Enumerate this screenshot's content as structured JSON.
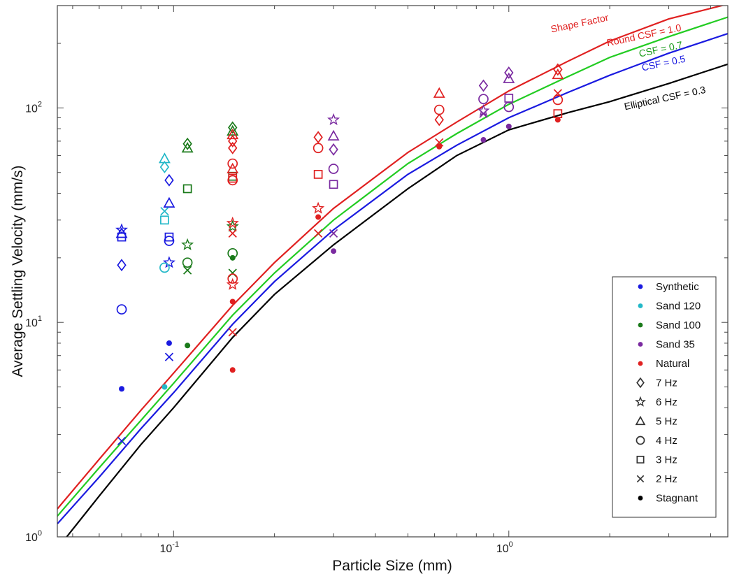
{
  "chart_data": {
    "type": "scatter",
    "xlabel": "Particle Size (mm)",
    "ylabel": "Average Settling Velocity (mm/s)",
    "xscale": "log",
    "yscale": "log",
    "xlim": [
      0.045,
      4.5
    ],
    "ylim": [
      1,
      300
    ],
    "x_ticks": [
      {
        "value": 0.1,
        "base": "10",
        "exp": "-1"
      },
      {
        "value": 1,
        "base": "10",
        "exp": "0"
      }
    ],
    "y_ticks": [
      {
        "value": 1,
        "base": "10",
        "exp": "0"
      },
      {
        "value": 10,
        "base": "10",
        "exp": "1"
      },
      {
        "value": 100,
        "base": "10",
        "exp": "2"
      }
    ],
    "grid": false,
    "curves": [
      {
        "label": "Shape Factor",
        "label2": "Round CSF = 1.0",
        "color": "#e02020",
        "points": [
          [
            0.045,
            1.35
          ],
          [
            0.06,
            2.3
          ],
          [
            0.08,
            3.9
          ],
          [
            0.1,
            5.8
          ],
          [
            0.15,
            12
          ],
          [
            0.2,
            19
          ],
          [
            0.3,
            34
          ],
          [
            0.5,
            62
          ],
          [
            0.7,
            86
          ],
          [
            1.0,
            120
          ],
          [
            1.5,
            165
          ],
          [
            2.0,
            205
          ],
          [
            3.0,
            260
          ],
          [
            4.5,
            305
          ]
        ]
      },
      {
        "label": "CSF = 0.7",
        "color": "#22cc22",
        "points": [
          [
            0.045,
            1.25
          ],
          [
            0.06,
            2.1
          ],
          [
            0.08,
            3.5
          ],
          [
            0.1,
            5.2
          ],
          [
            0.15,
            10.8
          ],
          [
            0.2,
            17
          ],
          [
            0.3,
            30
          ],
          [
            0.5,
            55
          ],
          [
            0.7,
            76
          ],
          [
            1.0,
            104
          ],
          [
            1.5,
            140
          ],
          [
            2.0,
            172
          ],
          [
            3.0,
            215
          ],
          [
            4.5,
            265
          ]
        ]
      },
      {
        "label": "CSF = 0.5",
        "color": "#1a1ae0",
        "points": [
          [
            0.045,
            1.15
          ],
          [
            0.06,
            1.9
          ],
          [
            0.08,
            3.2
          ],
          [
            0.1,
            4.7
          ],
          [
            0.15,
            9.8
          ],
          [
            0.2,
            15.5
          ],
          [
            0.3,
            27
          ],
          [
            0.5,
            49
          ],
          [
            0.7,
            67
          ],
          [
            1.0,
            90
          ],
          [
            1.5,
            118
          ],
          [
            2.0,
            142
          ],
          [
            3.0,
            180
          ],
          [
            4.5,
            222
          ]
        ]
      },
      {
        "label": "Elliptical CSF = 0.3",
        "color": "#000000",
        "points": [
          [
            0.048,
            1.0
          ],
          [
            0.06,
            1.55
          ],
          [
            0.08,
            2.7
          ],
          [
            0.1,
            4.0
          ],
          [
            0.15,
            8.5
          ],
          [
            0.2,
            13.5
          ],
          [
            0.3,
            23
          ],
          [
            0.5,
            42
          ],
          [
            0.7,
            60
          ],
          [
            1.0,
            79
          ],
          [
            1.5,
            95
          ],
          [
            2.0,
            107
          ],
          [
            3.0,
            130
          ],
          [
            4.5,
            160
          ]
        ]
      }
    ],
    "series": [
      {
        "name": "Synthetic",
        "color": "#1a1ae0",
        "points": [
          {
            "x": 0.07,
            "y": 4.9,
            "m": "stagnant"
          },
          {
            "x": 0.07,
            "y": 11.5,
            "m": "4hz"
          },
          {
            "x": 0.07,
            "y": 18.5,
            "m": "7hz"
          },
          {
            "x": 0.07,
            "y": 26,
            "m": "5hz"
          },
          {
            "x": 0.07,
            "y": 27,
            "m": "6hz"
          },
          {
            "x": 0.07,
            "y": 25,
            "m": "3hz"
          },
          {
            "x": 0.07,
            "y": 2.8,
            "m": "2hz"
          },
          {
            "x": 0.097,
            "y": 8,
            "m": "stagnant"
          },
          {
            "x": 0.097,
            "y": 6.9,
            "m": "2hz"
          },
          {
            "x": 0.097,
            "y": 19,
            "m": "6hz"
          },
          {
            "x": 0.097,
            "y": 24,
            "m": "4hz"
          },
          {
            "x": 0.097,
            "y": 25,
            "m": "3hz"
          },
          {
            "x": 0.097,
            "y": 36,
            "m": "5hz"
          },
          {
            "x": 0.097,
            "y": 46,
            "m": "7hz"
          }
        ]
      },
      {
        "name": "Sand 120",
        "color": "#22b8c8",
        "points": [
          {
            "x": 0.094,
            "y": 5,
            "m": "stagnant"
          },
          {
            "x": 0.094,
            "y": 18,
            "m": "4hz"
          },
          {
            "x": 0.094,
            "y": 30,
            "m": "3hz"
          },
          {
            "x": 0.094,
            "y": 33,
            "m": "2hz"
          },
          {
            "x": 0.094,
            "y": 53,
            "m": "7hz"
          },
          {
            "x": 0.094,
            "y": 58,
            "m": "5hz"
          }
        ]
      },
      {
        "name": "Sand 100",
        "color": "#1a7a1a",
        "points": [
          {
            "x": 0.11,
            "y": 7.8,
            "m": "stagnant"
          },
          {
            "x": 0.11,
            "y": 17.5,
            "m": "2hz"
          },
          {
            "x": 0.11,
            "y": 19,
            "m": "4hz"
          },
          {
            "x": 0.11,
            "y": 23,
            "m": "6hz"
          },
          {
            "x": 0.11,
            "y": 42,
            "m": "3hz"
          },
          {
            "x": 0.11,
            "y": 65,
            "m": "5hz"
          },
          {
            "x": 0.11,
            "y": 68,
            "m": "7hz"
          },
          {
            "x": 0.15,
            "y": 20,
            "m": "stagnant"
          },
          {
            "x": 0.15,
            "y": 17,
            "m": "2hz"
          },
          {
            "x": 0.15,
            "y": 21,
            "m": "4hz"
          },
          {
            "x": 0.15,
            "y": 28,
            "m": "6hz"
          },
          {
            "x": 0.15,
            "y": 48,
            "m": "3hz"
          },
          {
            "x": 0.15,
            "y": 78,
            "m": "5hz"
          },
          {
            "x": 0.15,
            "y": 81,
            "m": "7hz"
          }
        ]
      },
      {
        "name": "Sand 35",
        "color": "#7a2aa0",
        "points": [
          {
            "x": 0.3,
            "y": 21.5,
            "m": "stagnant"
          },
          {
            "x": 0.3,
            "y": 26,
            "m": "2hz"
          },
          {
            "x": 0.3,
            "y": 44,
            "m": "3hz"
          },
          {
            "x": 0.3,
            "y": 52,
            "m": "4hz"
          },
          {
            "x": 0.3,
            "y": 64,
            "m": "7hz"
          },
          {
            "x": 0.3,
            "y": 74,
            "m": "5hz"
          },
          {
            "x": 0.3,
            "y": 88,
            "m": "6hz"
          },
          {
            "x": 0.84,
            "y": 71,
            "m": "stagnant"
          },
          {
            "x": 0.84,
            "y": 94,
            "m": "2hz"
          },
          {
            "x": 0.84,
            "y": 97,
            "m": "6hz"
          },
          {
            "x": 0.84,
            "y": 110,
            "m": "4hz"
          },
          {
            "x": 0.84,
            "y": 127,
            "m": "7hz"
          },
          {
            "x": 1.0,
            "y": 82,
            "m": "stagnant"
          },
          {
            "x": 1.0,
            "y": 101,
            "m": "4hz"
          },
          {
            "x": 1.0,
            "y": 111,
            "m": "3hz"
          },
          {
            "x": 1.0,
            "y": 137,
            "m": "5hz"
          },
          {
            "x": 1.0,
            "y": 146,
            "m": "7hz"
          }
        ]
      },
      {
        "name": "Natural",
        "color": "#e02020",
        "points": [
          {
            "x": 0.15,
            "y": 6,
            "m": "stagnant"
          },
          {
            "x": 0.15,
            "y": 12.5,
            "m": "stagnant"
          },
          {
            "x": 0.15,
            "y": 9,
            "m": "2hz"
          },
          {
            "x": 0.15,
            "y": 15,
            "m": "6hz"
          },
          {
            "x": 0.15,
            "y": 16,
            "m": "4hz"
          },
          {
            "x": 0.15,
            "y": 26,
            "m": "2hz"
          },
          {
            "x": 0.15,
            "y": 29,
            "m": "6hz"
          },
          {
            "x": 0.15,
            "y": 46,
            "m": "4hz"
          },
          {
            "x": 0.15,
            "y": 47,
            "m": "3hz"
          },
          {
            "x": 0.15,
            "y": 52,
            "m": "5hz"
          },
          {
            "x": 0.15,
            "y": 55,
            "m": "4hz"
          },
          {
            "x": 0.15,
            "y": 65,
            "m": "7hz"
          },
          {
            "x": 0.15,
            "y": 70,
            "m": "7hz"
          },
          {
            "x": 0.15,
            "y": 75,
            "m": "5hz"
          },
          {
            "x": 0.27,
            "y": 31,
            "m": "stagnant"
          },
          {
            "x": 0.27,
            "y": 26,
            "m": "2hz"
          },
          {
            "x": 0.27,
            "y": 34,
            "m": "6hz"
          },
          {
            "x": 0.27,
            "y": 49,
            "m": "3hz"
          },
          {
            "x": 0.27,
            "y": 65,
            "m": "4hz"
          },
          {
            "x": 0.27,
            "y": 73,
            "m": "7hz"
          },
          {
            "x": 0.62,
            "y": 66,
            "m": "stagnant"
          },
          {
            "x": 0.62,
            "y": 69,
            "m": "2hz"
          },
          {
            "x": 0.62,
            "y": 88,
            "m": "7hz"
          },
          {
            "x": 0.62,
            "y": 98,
            "m": "4hz"
          },
          {
            "x": 0.62,
            "y": 117,
            "m": "5hz"
          },
          {
            "x": 1.4,
            "y": 88,
            "m": "stagnant"
          },
          {
            "x": 1.4,
            "y": 94,
            "m": "3hz"
          },
          {
            "x": 1.4,
            "y": 109,
            "m": "4hz"
          },
          {
            "x": 1.4,
            "y": 117,
            "m": "2hz"
          },
          {
            "x": 1.4,
            "y": 143,
            "m": "5hz"
          },
          {
            "x": 1.4,
            "y": 151,
            "m": "7hz"
          }
        ]
      }
    ],
    "legend": {
      "position": "bottom-right",
      "entries": [
        {
          "label": "Synthetic",
          "symbol": "dot",
          "color": "#1a1ae0"
        },
        {
          "label": "Sand 120",
          "symbol": "dot",
          "color": "#22b8c8"
        },
        {
          "label": "Sand 100",
          "symbol": "dot",
          "color": "#1a7a1a"
        },
        {
          "label": "Sand 35",
          "symbol": "dot",
          "color": "#7a2aa0"
        },
        {
          "label": "Natural",
          "symbol": "dot",
          "color": "#e02020"
        },
        {
          "label": "7 Hz",
          "symbol": "7hz",
          "color": "#333333"
        },
        {
          "label": "6 Hz",
          "symbol": "6hz",
          "color": "#333333"
        },
        {
          "label": "5 Hz",
          "symbol": "5hz",
          "color": "#333333"
        },
        {
          "label": "4 Hz",
          "symbol": "4hz",
          "color": "#333333"
        },
        {
          "label": "3 Hz",
          "symbol": "3hz",
          "color": "#333333"
        },
        {
          "label": "2 Hz",
          "symbol": "2hz",
          "color": "#333333"
        },
        {
          "label": "Stagnant",
          "symbol": "stagnant",
          "color": "#000000"
        }
      ]
    }
  }
}
